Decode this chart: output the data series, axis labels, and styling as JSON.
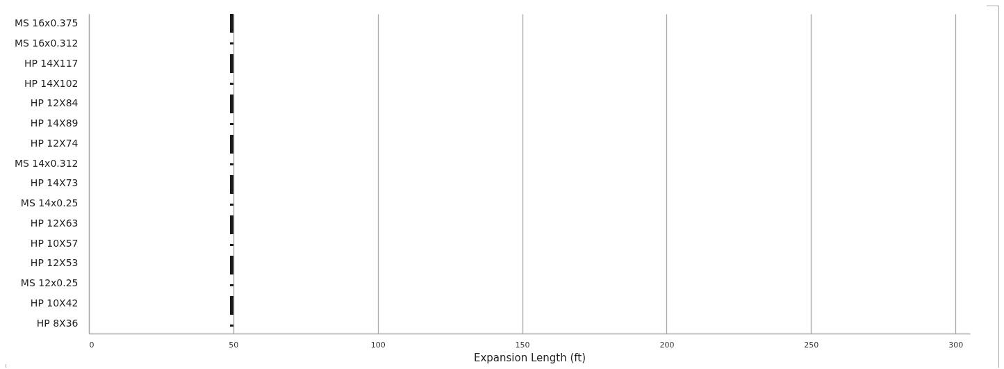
{
  "chart_data": {
    "type": "bar",
    "orientation": "horizontal",
    "xlabel": "Expansion Length (ft)",
    "categories": [
      "MS 16x0.375",
      "MS 16x0.312",
      "HP 14X117",
      "HP 14X102",
      "HP 12X84",
      "HP 14X89",
      "HP 12X74",
      "MS 14x0.312",
      "HP 14X73",
      "MS 14x0.25",
      "HP 12X63",
      "HP 10X57",
      "HP 12X53",
      "MS 12x0.25",
      "HP 10X42",
      "HP 8X36"
    ],
    "values": [
      null,
      null,
      null,
      null,
      null,
      null,
      null,
      null,
      null,
      null,
      null,
      null,
      null,
      null,
      null,
      null
    ],
    "xlim": [
      0,
      305
    ],
    "xticks": [
      0,
      50,
      100,
      150,
      200,
      250,
      300
    ],
    "grid": "x",
    "ref_lines": [
      {
        "axis": "x",
        "value": 49.5,
        "color": "#1a1a1a",
        "line_style": "dashed"
      }
    ]
  }
}
